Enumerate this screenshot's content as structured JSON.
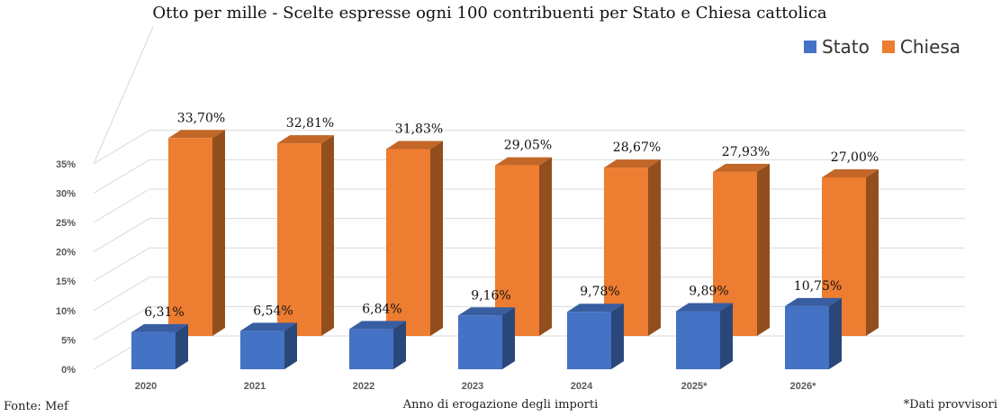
{
  "chart_data": {
    "type": "bar",
    "title": "Otto per mille - Scelte espresse ogni 100 contribuenti per Stato e Chiesa cattolica",
    "xlabel": "Anno di erogazione degli importi",
    "ylabel": "",
    "categories": [
      "2020",
      "2021",
      "2022",
      "2023",
      "2024",
      "2025*",
      "2026*"
    ],
    "series": [
      {
        "name": "Stato",
        "color": "#4472c4",
        "values": [
          6.31,
          6.54,
          6.84,
          9.16,
          9.78,
          9.89,
          10.75
        ],
        "labels": [
          "6,31%",
          "6,54%",
          "6,84%",
          "9,16%",
          "9,78%",
          "9,89%",
          "10,75%"
        ]
      },
      {
        "name": "Chiesa",
        "color": "#ed7d31",
        "values": [
          33.7,
          32.81,
          31.83,
          29.05,
          28.67,
          27.93,
          27.0
        ],
        "labels": [
          "33,70%",
          "32,81%",
          "31,83%",
          "29,05%",
          "28,67%",
          "27,93%",
          "27,00%"
        ]
      }
    ],
    "ylim": [
      0,
      35
    ],
    "yticks": [
      "0%",
      "5%",
      "10%",
      "15%",
      "20%",
      "25%",
      "30%",
      "35%"
    ],
    "grid": true,
    "legend": "top-right",
    "style": "3d-clustered-column"
  },
  "footer": {
    "source": "Fonte: Mef",
    "note": "*Dati provvisori"
  }
}
